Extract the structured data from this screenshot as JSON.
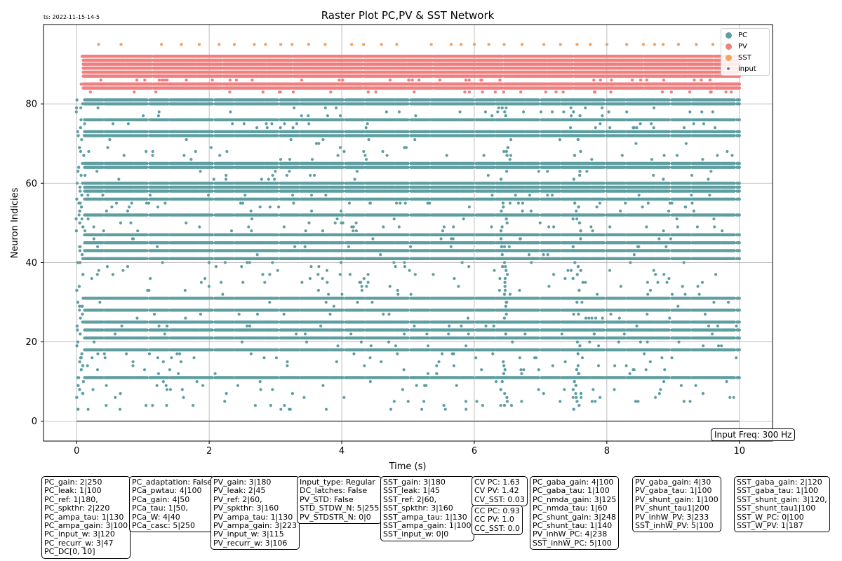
{
  "timestamp": "ts: 2022-11-15-14-5",
  "input_freq_label": "Input Freq: 300 Hz",
  "colors": {
    "PC": "#5f9ea0",
    "PV": "#f08080",
    "SST": "#f4a460",
    "input": "#708090"
  },
  "chart_data": {
    "type": "scatter",
    "title": "Raster Plot PC,PV & SST Network",
    "xlabel": "Time (s)",
    "ylabel": "Neuron Indicies",
    "xlim": [
      -0.5,
      10.5
    ],
    "ylim": [
      -5,
      100
    ],
    "xticks": [
      0,
      2,
      4,
      6,
      8,
      10
    ],
    "yticks": [
      0,
      20,
      40,
      60,
      80
    ],
    "grid": true,
    "legend_position": "top-right",
    "series": [
      {
        "name": "PC",
        "neuron_range": [
          3,
          81
        ],
        "dense_rows": [
          11,
          18,
          21,
          23,
          25,
          28,
          31,
          41,
          43,
          45,
          47,
          52,
          56,
          58,
          59,
          60,
          64,
          65,
          72,
          73,
          76,
          80,
          81
        ],
        "t_range": [
          0,
          10
        ],
        "bursts_s": [
          0.05,
          6.45,
          7.55
        ]
      },
      {
        "name": "PV",
        "neuron_range": [
          83,
          92
        ],
        "dense_rows": [
          84,
          85,
          87,
          88,
          89,
          90,
          91,
          92
        ],
        "t_range": [
          0,
          10
        ]
      },
      {
        "name": "SST",
        "neuron_range": [
          95,
          95
        ],
        "spike_times_s": [
          0.33,
          0.67,
          1.28,
          1.58,
          1.85,
          2.15,
          2.38,
          2.68,
          2.85,
          3.08,
          3.25,
          3.5,
          3.75,
          4.15,
          4.33,
          4.6,
          4.83,
          5.35,
          5.65,
          5.8,
          6.0,
          6.22,
          6.45,
          6.72,
          7.05,
          7.3,
          7.55,
          7.75,
          8.0,
          8.3,
          8.55,
          8.72,
          8.85,
          9.08,
          9.35,
          9.6,
          9.75,
          10.0
        ]
      },
      {
        "name": "input",
        "neuron_range": [
          0,
          0
        ],
        "t_range": [
          0,
          10
        ]
      }
    ]
  },
  "param_boxes": [
    {
      "id": "pc-params",
      "lines": [
        "PC_gain: 2|250",
        "PC_leak: 1|100",
        "PC_ref: 1|180,",
        "PC_spkthr: 2|220",
        "PC_ampa_tau: 1|130",
        "PC_ampa_gain: 3|100",
        "PC_input_w: 3|120",
        "PC_recurr_w: 3|47",
        "PC_DC[0, 10]"
      ]
    },
    {
      "id": "pc-adaptation",
      "lines": [
        "PC_adaptation: False",
        "PCa_pwtau: 4|100",
        "PCa_gain: 4|50",
        "PCa_tau: 1|50,",
        "PCa_W: 4|40",
        "PCa_casc: 5|250"
      ]
    },
    {
      "id": "pv-params",
      "lines": [
        "PV_gain: 3|180",
        "PV_leak: 2|45",
        "PV_ref: 2|60,",
        "PV_spkthr: 3|160",
        "PV_ampa_tau: 1|130",
        "PV_ampa_gain: 3|223",
        "PV_input_w: 3|115",
        "PV_recurr_w: 3|106"
      ]
    },
    {
      "id": "input-params",
      "lines": [
        "Input_type: Regular",
        "DC_latches: False",
        "PV_STD: False",
        "STD_STDW_N: 5|255",
        "PV_STDSTR_N: 0|0"
      ]
    },
    {
      "id": "sst-params",
      "lines": [
        "SST_gain: 3|180",
        "SST_leak: 1|45",
        "SST_ref: 2|60,",
        "SST_spkthr: 3|160",
        "SST_ampa_tau: 1|130",
        "SST_ampa_gain: 1|100",
        "SST_input_w: 0|0"
      ]
    },
    {
      "id": "cv-stats",
      "lines": [
        "CV PC: 1.63",
        "CV PV: 1.42",
        "CV_SST: 0.03"
      ]
    },
    {
      "id": "cc-stats",
      "lines": [
        "CC PC: 0.93",
        "CC PV: 1.0",
        "CC_SST: 0.0"
      ]
    },
    {
      "id": "pc-synapse",
      "lines": [
        "PC_gaba_gain: 4|100",
        "PC_gaba_tau: 1|100",
        "PC_nmda_gain: 3|125",
        "PC_nmda_tau: 1|60",
        "PC_shunt_gain: 3|248",
        "PC_shunt_tau: 1|140",
        "PV_inhW_PC: 4|238",
        "SST_inhW_PC: 5|100"
      ]
    },
    {
      "id": "pv-synapse",
      "lines": [
        "PV_gaba_gain: 4|30",
        "PV_gaba_tau: 1|100",
        "PV_shunt_gain: 1|100",
        "PV_shunt_tau1|200",
        "PV_inhW_PV: 3|233",
        "SST_inhW_PV: 5|100"
      ]
    },
    {
      "id": "sst-synapse",
      "lines": [
        "SST_gaba_gain: 2|120",
        "SST_gaba_tau: 1|100",
        "SST_shunt_gain: 3|120,",
        "SST_shunt_tau1|100",
        "SST_W_PC: 0|100",
        "SST_W_PV: 1|187"
      ]
    }
  ]
}
